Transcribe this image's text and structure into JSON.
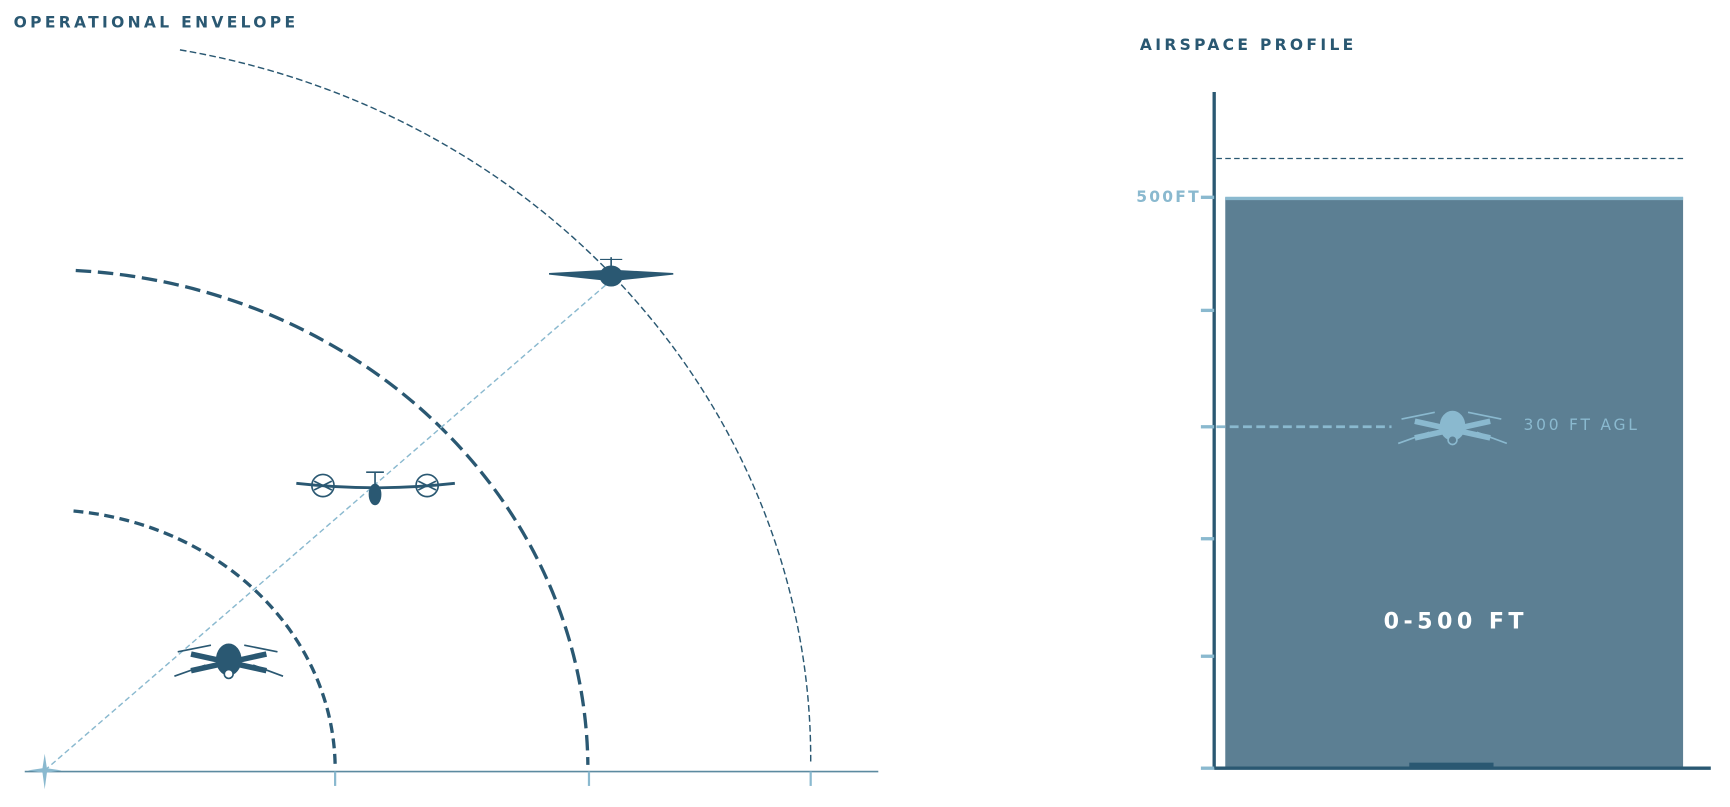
{
  "operational_envelope": {
    "title": "OPERATIONAL ENVELOPE"
  },
  "airspace_profile": {
    "title": "AIRSPACE PROFILE",
    "ceiling_label": "500FT",
    "drone_label": "300 FT AGL",
    "band_label": "0-500 FT"
  }
}
